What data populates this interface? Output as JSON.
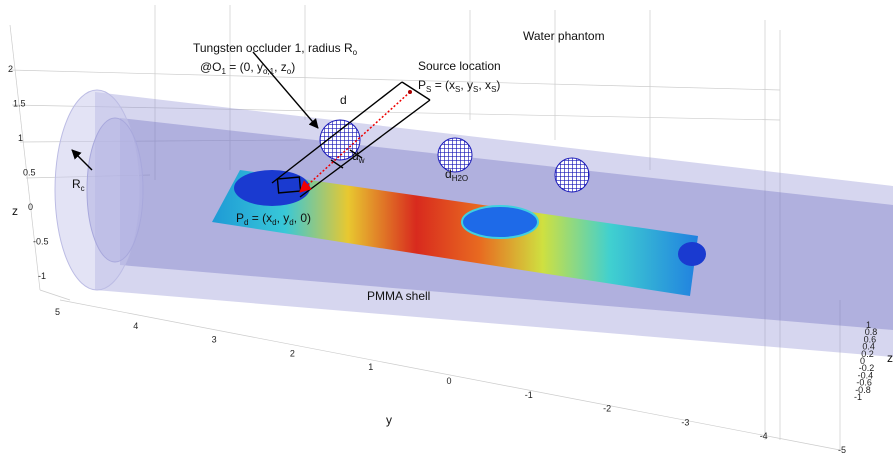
{
  "annotations": {
    "occluder": [
      "Tungsten occluder 1, radius R",
      "o"
    ],
    "occluder_position": [
      "@O",
      "1",
      " = (0, y",
      "o,1",
      ", z",
      "o",
      ")"
    ],
    "source_title": [
      "Source location"
    ],
    "source_position": [
      "P",
      "S",
      " = (x",
      "S",
      ", y",
      "S",
      ", x",
      "S",
      ")"
    ],
    "water": [
      "Water phantom"
    ],
    "distance": [
      "d"
    ],
    "water_distance": [
      "d",
      "H2O"
    ],
    "wall_distance": [
      "d",
      "w"
    ],
    "radius": [
      "R",
      "c"
    ],
    "detector": [
      "P",
      "d",
      " = (x",
      "d",
      ", y",
      "d",
      ", 0)"
    ],
    "shell": [
      "PMMA shell"
    ]
  },
  "axes": {
    "z": {
      "label": "z",
      "ticks": [
        "2",
        "1.5",
        "1",
        "0.5",
        "0",
        "-0.5",
        "-1"
      ]
    },
    "y": {
      "label": "y",
      "ticks": [
        "5",
        "4",
        "3",
        "2",
        "1",
        "0",
        "-1",
        "-2",
        "-3",
        "-4",
        "-5"
      ]
    },
    "x": {
      "label": "z",
      "ticks": [
        "1",
        "0.8",
        "0.6",
        "0.4",
        "0.2",
        "0",
        "-0.2",
        "-0.4",
        "-0.6",
        "-0.8",
        "-1"
      ]
    }
  }
}
